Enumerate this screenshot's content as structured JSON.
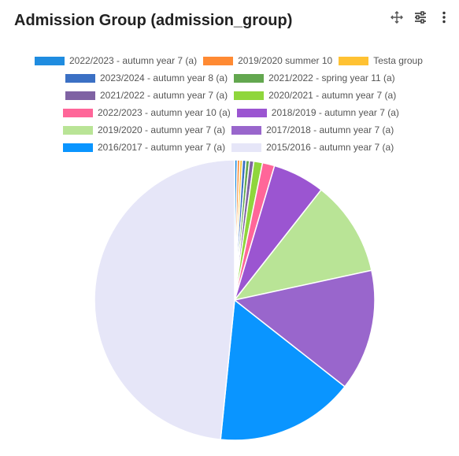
{
  "header": {
    "title": "Admission Group (admission_group)"
  },
  "toolbar": {
    "icons": [
      "move-icon",
      "sliders-icon",
      "more-vertical-icon"
    ]
  },
  "chart_data": {
    "type": "pie",
    "title": "Admission Group (admission_group)",
    "legend_position": "top",
    "series": [
      {
        "name": "2022/2023 - autumn year  7 (a)",
        "value": 0.3,
        "color": "#1f8ce0"
      },
      {
        "name": "2019/2020 summer 10",
        "value": 0.3,
        "color": "#ff8a33"
      },
      {
        "name": "Testa group",
        "value": 0.3,
        "color": "#ffc233"
      },
      {
        "name": "2023/2024 - autumn year  8 (a)",
        "value": 0.4,
        "color": "#3b70c4"
      },
      {
        "name": "2021/2022 - spring year 11 (a)",
        "value": 0.4,
        "color": "#63a74f"
      },
      {
        "name": "2021/2022 - autumn year 7 (a)",
        "value": 0.5,
        "color": "#7f62a3"
      },
      {
        "name": "2020/2021 - autumn year  7 (a)",
        "value": 1.0,
        "color": "#8fd63c"
      },
      {
        "name": "2022/2023 - autumn year 10 (a)",
        "value": 1.4,
        "color": "#ff6699"
      },
      {
        "name": "2018/2019 - autumn year  7 (a)",
        "value": 6.0,
        "color": "#9b55d1"
      },
      {
        "name": "2019/2020 - autumn year  7 (a)",
        "value": 11.0,
        "color": "#b9e496"
      },
      {
        "name": "2017/2018 - autumn year  7 (a)",
        "value": 14.0,
        "color": "#9966cc"
      },
      {
        "name": "2016/2017 - autumn year  7 (a)",
        "value": 16.0,
        "color": "#0a95ff"
      },
      {
        "name": "2015/2016 - autumn year  7 (a)",
        "value": 48.4,
        "color": "#e6e6f8"
      }
    ]
  }
}
